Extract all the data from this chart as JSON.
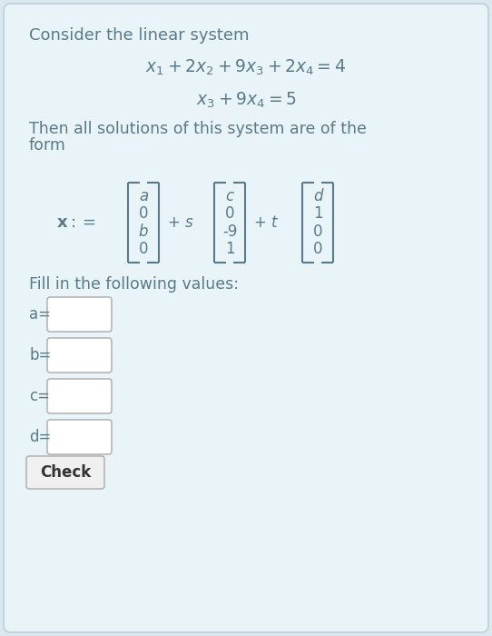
{
  "bg_color": "#dce8f0",
  "text_color": "#5a7a8a",
  "title": "Consider the linear system",
  "eq1": "$x_1 + 2x_2 + 9x_3 + 2x_4 = 4$",
  "eq2": "$x_3 + 9x_4 = 5$",
  "vec1": [
    "a",
    "0",
    "b",
    "0"
  ],
  "vec2": [
    "c",
    "0",
    "-9",
    "1"
  ],
  "vec3": [
    "d",
    "1",
    "0",
    "0"
  ],
  "fill_text": "Fill in the following values:",
  "labels": [
    "a=",
    "b=",
    "c=",
    "d="
  ],
  "check_label": "Check",
  "bg_inner": "#e8f4f8",
  "border_color": "#c0cfd8",
  "box_fill": "#ffffff",
  "box_edge": "#aaaaaa",
  "check_fill": "#f0f0f0",
  "check_edge": "#aaaaaa",
  "check_text": "#333333"
}
